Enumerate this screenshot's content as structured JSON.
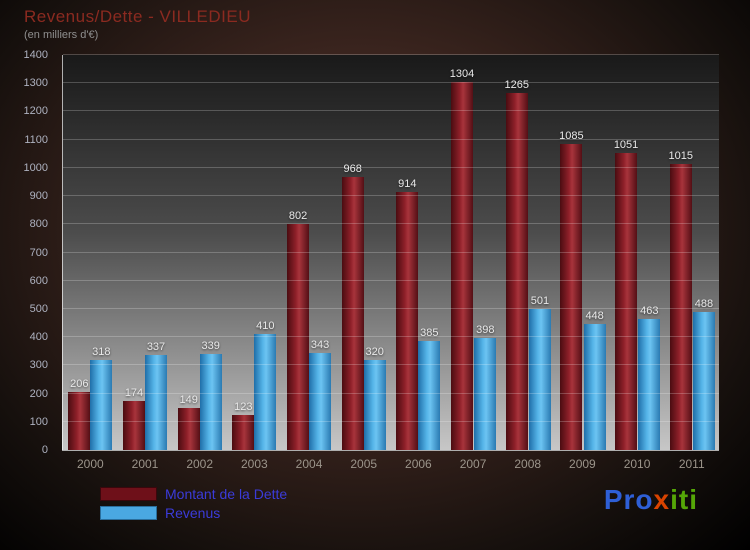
{
  "header": {
    "title": "Revenus/Dette - VILLEDIEU",
    "subtitle": "(en milliers d'€)"
  },
  "legend": {
    "dette_label": "Montant de la Dette",
    "revenus_label": "Revenus"
  },
  "logo": {
    "text": "Proxiti",
    "letters": [
      {
        "ch": "P",
        "color": "#2e5fd6"
      },
      {
        "ch": "r",
        "color": "#2e5fd6"
      },
      {
        "ch": "o",
        "color": "#2e5fd6"
      },
      {
        "ch": "x",
        "color": "#d94300"
      },
      {
        "ch": "i",
        "color": "#55a607"
      },
      {
        "ch": "t",
        "color": "#55a607"
      },
      {
        "ch": "i",
        "color": "#55a607"
      }
    ]
  },
  "colors": {
    "dette_bar": "#8e2029",
    "revenus_bar": "#55b4e8",
    "title": "#8b2a20",
    "legend_text": "#3b3bd9"
  },
  "chart_data": {
    "type": "bar",
    "title": "Revenus/Dette - VILLEDIEU",
    "subtitle": "(en milliers d'€)",
    "categories": [
      "2000",
      "2001",
      "2002",
      "2003",
      "2004",
      "2005",
      "2006",
      "2007",
      "2008",
      "2009",
      "2010",
      "2011"
    ],
    "series": [
      {
        "name": "Montant de la Dette",
        "color": "#8e2029",
        "values": [
          206,
          174,
          149,
          123,
          802,
          968,
          914,
          1304,
          1265,
          1085,
          1051,
          1015
        ]
      },
      {
        "name": "Revenus",
        "color": "#55b4e8",
        "values": [
          318,
          337,
          339,
          410,
          343,
          320,
          385,
          398,
          501,
          448,
          463,
          488
        ]
      }
    ],
    "xlabel": "",
    "ylabel": "",
    "ylim": [
      0,
      1400
    ],
    "ytick_step": 100,
    "grid": true,
    "legend_position": "bottom-left"
  }
}
